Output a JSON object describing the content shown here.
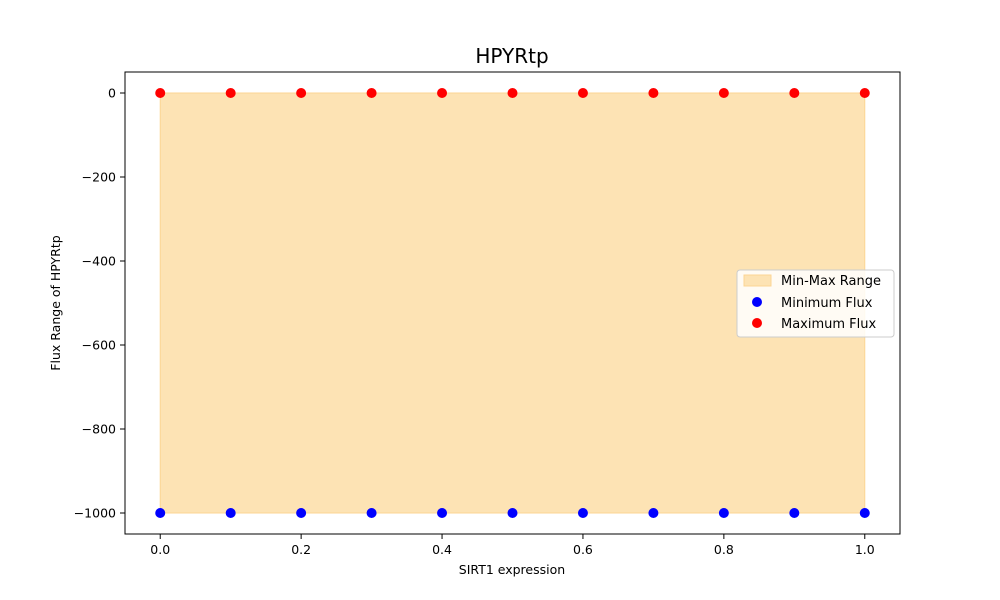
{
  "chart_data": {
    "type": "scatter",
    "title": "HPYRtp",
    "xlabel": "SIRT1 expression",
    "ylabel": "Flux Range of HPYRtp",
    "xlim": [
      -0.05,
      1.05
    ],
    "ylim": [
      -1050,
      50
    ],
    "x_ticks": [
      0.0,
      0.2,
      0.4,
      0.6,
      0.8,
      1.0
    ],
    "x_tick_labels": [
      "0.0",
      "0.2",
      "0.4",
      "0.6",
      "0.8",
      "1.0"
    ],
    "y_ticks": [
      0,
      -200,
      -400,
      -600,
      -800,
      -1000
    ],
    "y_tick_labels": [
      "0",
      "−200",
      "−400",
      "−600",
      "−800",
      "−1000"
    ],
    "grid": false,
    "legend_position": "center-right",
    "x": [
      0.0,
      0.1,
      0.2,
      0.3,
      0.4,
      0.5,
      0.6,
      0.7,
      0.8,
      0.9,
      1.0
    ],
    "series": [
      {
        "name": "Min-Max Range",
        "kind": "fill_between",
        "lower": [
          -1000,
          -1000,
          -1000,
          -1000,
          -1000,
          -1000,
          -1000,
          -1000,
          -1000,
          -1000,
          -1000
        ],
        "upper": [
          0,
          0,
          0,
          0,
          0,
          0,
          0,
          0,
          0,
          0,
          0
        ],
        "color": "#fde3b4",
        "edge_color": "#fcd593"
      },
      {
        "name": "Minimum Flux",
        "kind": "scatter",
        "values": [
          -1000,
          -1000,
          -1000,
          -1000,
          -1000,
          -1000,
          -1000,
          -1000,
          -1000,
          -1000,
          -1000
        ],
        "color": "#0000ff"
      },
      {
        "name": "Maximum Flux",
        "kind": "scatter",
        "values": [
          0,
          0,
          0,
          0,
          0,
          0,
          0,
          0,
          0,
          0,
          0
        ],
        "color": "#ff0000"
      }
    ]
  }
}
